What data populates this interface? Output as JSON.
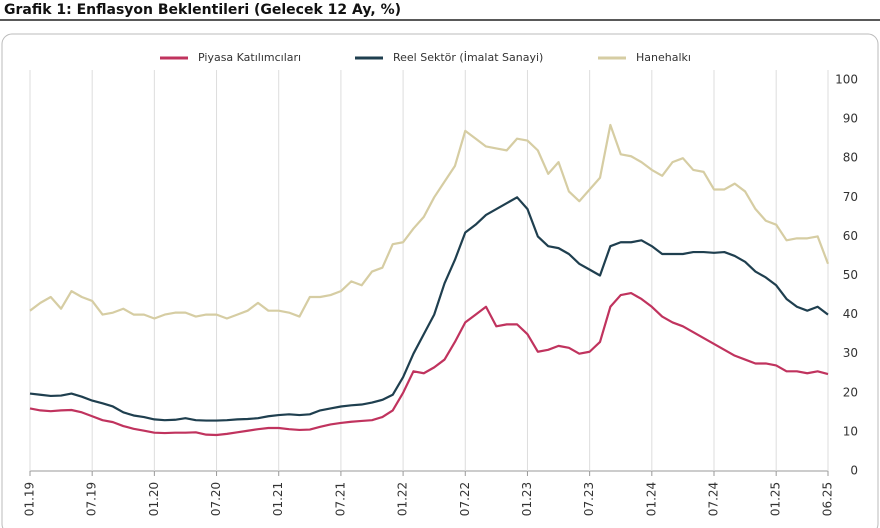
{
  "chart_data": {
    "type": "line",
    "title": "Grafik 1: Enflasyon Beklentileri (Gelecek 12 Ay, %)",
    "categories": [
      "01.19",
      null,
      null,
      null,
      null,
      null,
      "07.19",
      null,
      null,
      null,
      null,
      null,
      "01.20",
      null,
      null,
      null,
      null,
      null,
      "07.20",
      null,
      null,
      null,
      null,
      null,
      "01.21",
      null,
      null,
      null,
      null,
      null,
      "07.21",
      null,
      null,
      null,
      null,
      null,
      "01.22",
      null,
      null,
      null,
      null,
      null,
      "07.22",
      null,
      null,
      null,
      null,
      null,
      "01.23",
      null,
      null,
      null,
      null,
      null,
      "07.23",
      null,
      null,
      null,
      null,
      null,
      "01.24",
      null,
      null,
      null,
      null,
      null,
      "07.24",
      null,
      null,
      null,
      null,
      null,
      "01.25",
      null,
      null,
      null,
      null,
      "06.25"
    ],
    "series": [
      {
        "name": "Piyasa Katılımcıları",
        "color": "#c0335e",
        "values": [
          16,
          15.5,
          15.3,
          15.5,
          15.6,
          15,
          14,
          13,
          12.5,
          11.5,
          10.8,
          10.3,
          9.8,
          9.7,
          9.8,
          9.8,
          9.9,
          9.3,
          9.2,
          9.5,
          9.9,
          10.3,
          10.7,
          11,
          11,
          10.7,
          10.5,
          10.6,
          11.3,
          11.9,
          12.3,
          12.6,
          12.8,
          13,
          13.8,
          15.5,
          20,
          25.5,
          25,
          26.5,
          28.5,
          33,
          38,
          40,
          42,
          37,
          37.5,
          37.5,
          35,
          30.5,
          31,
          32,
          31.5,
          30,
          30.5,
          33,
          42,
          45,
          45.5,
          44,
          42,
          39.5,
          38,
          37,
          35.5,
          34,
          32.5,
          31,
          29.5,
          28.5,
          27.5,
          27.5,
          27,
          25.5,
          25.5,
          25,
          25.5,
          24.8
        ]
      },
      {
        "name": "Reel Sektör (İmalat Sanayi)",
        "color": "#1f3f4f",
        "values": [
          19.8,
          19.5,
          19.2,
          19.3,
          19.8,
          19,
          18,
          17.3,
          16.5,
          15,
          14.2,
          13.8,
          13.2,
          13,
          13.1,
          13.5,
          13,
          12.9,
          12.9,
          13,
          13.2,
          13.3,
          13.5,
          14,
          14.3,
          14.5,
          14.3,
          14.5,
          15.5,
          16,
          16.5,
          16.8,
          17,
          17.5,
          18.2,
          19.5,
          24,
          30,
          35,
          40,
          48,
          54,
          61,
          63,
          65.5,
          67,
          68.5,
          70,
          67,
          60,
          57.5,
          57,
          55.5,
          53,
          51.5,
          50,
          57.5,
          58.5,
          58.5,
          59,
          57.5,
          55.5,
          55.5,
          55.5,
          56,
          56,
          55.8,
          56,
          55,
          53.5,
          51,
          49.5,
          47.5,
          44,
          42,
          41,
          42,
          40
        ]
      },
      {
        "name": "Hanehalkı",
        "color": "#d6cda3",
        "values": [
          41,
          43,
          44.5,
          41.5,
          46,
          44.5,
          43.5,
          40,
          40.5,
          41.5,
          40,
          40,
          39,
          40,
          40.5,
          40.5,
          39.5,
          40,
          40,
          39,
          40,
          41,
          43,
          41,
          41,
          40.5,
          39.5,
          44.5,
          44.5,
          45,
          46,
          48.5,
          47.5,
          51,
          52,
          58,
          58.5,
          62,
          65,
          70,
          74,
          78,
          87,
          85,
          83,
          82.5,
          82,
          85,
          84.5,
          82,
          76,
          79,
          71.5,
          69,
          72,
          75,
          88.5,
          81,
          80.5,
          79,
          77,
          75.5,
          79,
          80,
          77,
          76.5,
          72,
          72,
          73.5,
          71.5,
          67,
          64,
          63,
          59,
          59.5,
          59.5,
          60,
          53
        ]
      }
    ],
    "ylim": [
      0,
      100
    ],
    "yticks": [
      0,
      10,
      20,
      30,
      40,
      50,
      60,
      70,
      80,
      90,
      100
    ],
    "grid": true
  }
}
